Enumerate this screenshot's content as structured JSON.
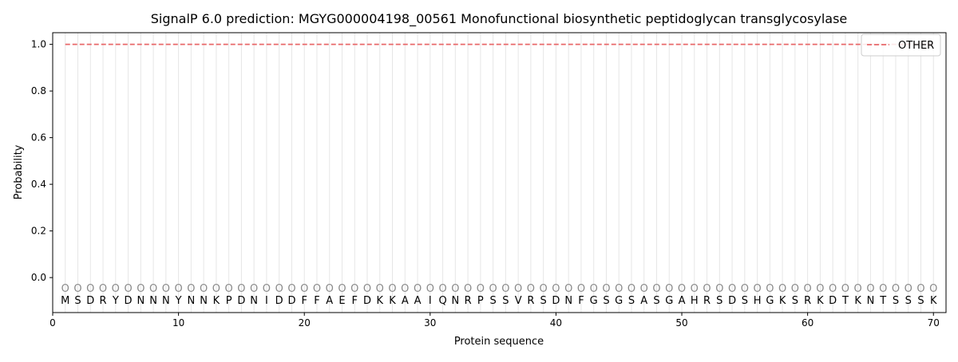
{
  "chart_data": {
    "type": "line",
    "title": "SignalP 6.0 prediction: MGYG000004198_00561 Monofunctional biosynthetic peptidoglycan transglycosylase",
    "xlabel": "Protein sequence",
    "ylabel": "Probability",
    "xlim": [
      0,
      71
    ],
    "ylim": [
      -0.15,
      1.05
    ],
    "x_ticks": [
      0,
      10,
      20,
      30,
      40,
      50,
      60,
      70
    ],
    "y_ticks": [
      0.0,
      0.2,
      0.4,
      0.6,
      0.8,
      1.0
    ],
    "grid": "vertical lines at each residue position",
    "legend_position": "top-right",
    "sequence": [
      "M",
      "S",
      "D",
      "R",
      "Y",
      "D",
      "N",
      "N",
      "N",
      "Y",
      "N",
      "N",
      "K",
      "P",
      "D",
      "N",
      "I",
      "D",
      "D",
      "F",
      "F",
      "A",
      "E",
      "F",
      "D",
      "K",
      "K",
      "A",
      "A",
      "I",
      "Q",
      "N",
      "R",
      "P",
      "S",
      "S",
      "V",
      "R",
      "S",
      "D",
      "N",
      "F",
      "G",
      "S",
      "G",
      "S",
      "A",
      "S",
      "G",
      "A",
      "H",
      "R",
      "S",
      "D",
      "S",
      "H",
      "G",
      "K",
      "S",
      "R",
      "K",
      "D",
      "T",
      "K",
      "N",
      "T",
      "S",
      "S",
      "S",
      "K"
    ],
    "marker_label": "O",
    "marker_y": -0.045,
    "series": [
      {
        "name": "OTHER",
        "color": "#e8686a",
        "style": "dashed",
        "x_range": [
          1,
          70
        ],
        "value": 1.0
      }
    ]
  }
}
